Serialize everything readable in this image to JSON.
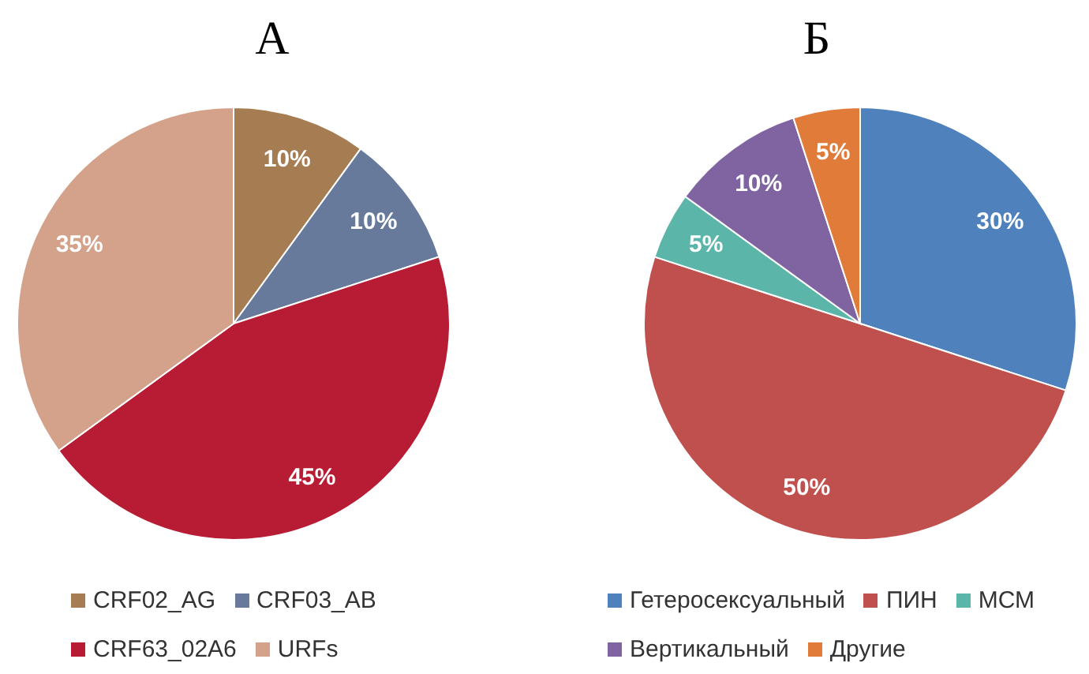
{
  "chart_data": [
    {
      "type": "pie",
      "title": "А",
      "categories": [
        "CRF02_AG",
        "CRF03_AB",
        "CRF63_02A6",
        "URFs"
      ],
      "values": [
        10,
        10,
        45,
        35
      ],
      "colors": [
        "#a67c52",
        "#677a9b",
        "#b71c34",
        "#d4a18a"
      ],
      "value_labels": [
        "10%",
        "10%",
        "45%",
        "35%"
      ],
      "legend": "bottom"
    },
    {
      "type": "pie",
      "title": "Б",
      "categories": [
        "Гетеросексуальный",
        "ПИН",
        "МСМ",
        "Вертикальный",
        "Другие"
      ],
      "values": [
        30,
        50,
        5,
        10,
        5
      ],
      "colors": [
        "#4f81bd",
        "#c0504d",
        "#5bb5a8",
        "#8064a2",
        "#e07b39"
      ],
      "value_labels": [
        "30%",
        "50%",
        "5%",
        "10%",
        "5%"
      ],
      "legend": "bottom"
    }
  ]
}
